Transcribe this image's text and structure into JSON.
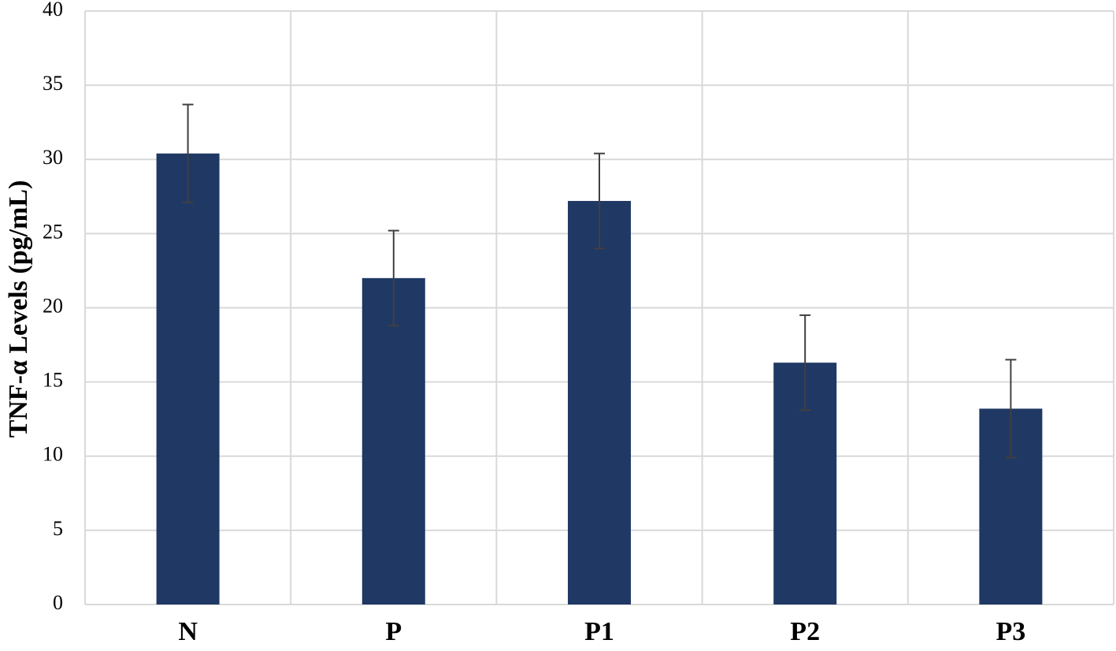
{
  "chart_data": {
    "type": "bar",
    "title": "",
    "xlabel": "",
    "ylabel": "TNF-α Levels  (pg/mL)",
    "categories": [
      "N",
      "P",
      "P1",
      "P2",
      "P3"
    ],
    "values": [
      30.4,
      22.0,
      27.2,
      16.3,
      13.2
    ],
    "error": [
      3.3,
      3.2,
      3.2,
      3.2,
      3.3
    ],
    "ylim": [
      0,
      40
    ],
    "yticks": [
      0,
      5,
      10,
      15,
      20,
      25,
      30,
      35,
      40
    ],
    "grid": true,
    "legend": "none",
    "colors": {
      "bar": "#203864",
      "grid": "#d9d9d9",
      "error_bar": "#404040"
    }
  }
}
